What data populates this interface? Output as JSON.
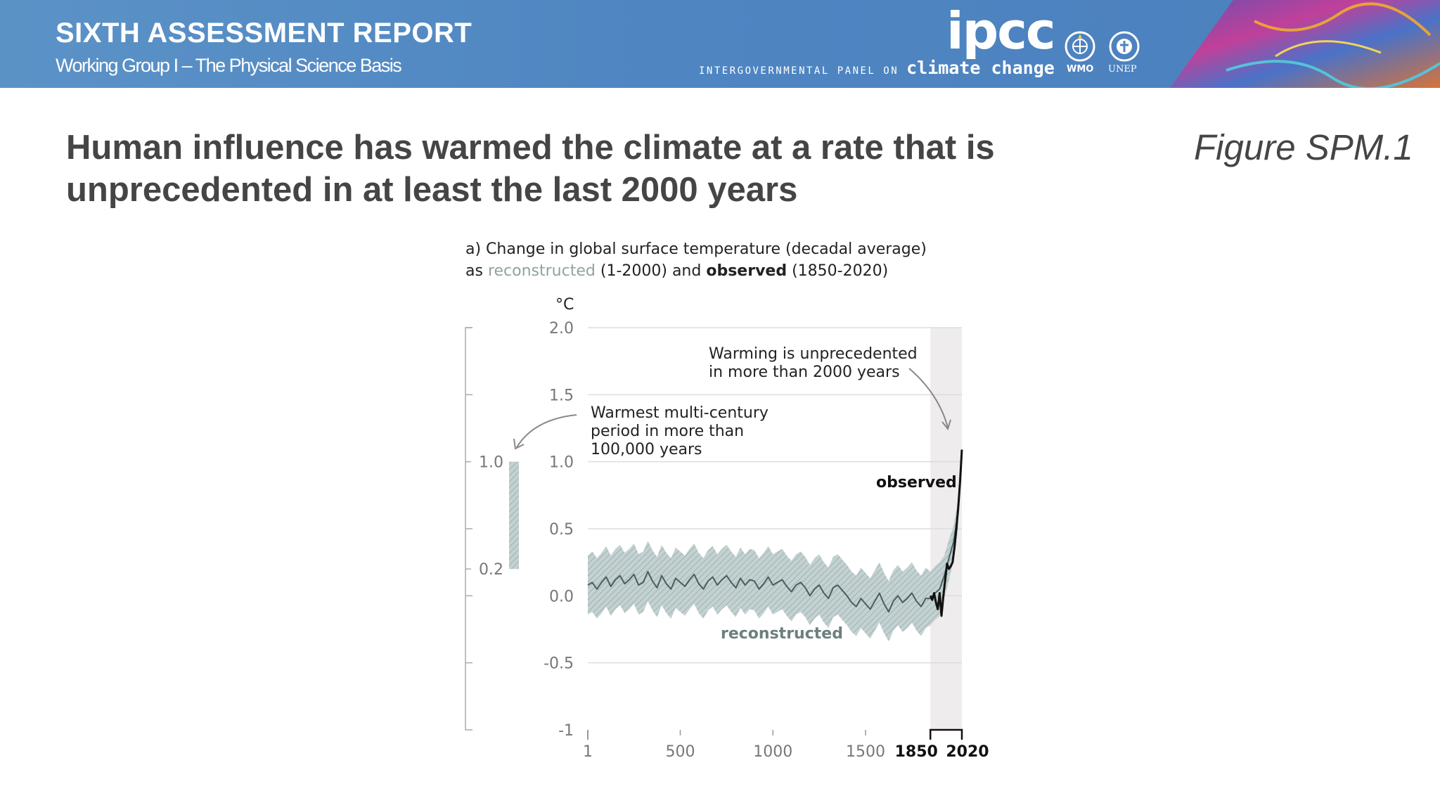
{
  "banner": {
    "title": "SIXTH ASSESSMENT REPORT",
    "subtitle": "Working Group I – The Physical Science Basis",
    "logo_text": "ipcc",
    "logo_line_small": "INTERGOVERNMENTAL PANEL ON",
    "logo_line_big": "climate change",
    "emblems": [
      "WMO",
      "UNEP"
    ],
    "colors": {
      "banner": "#4f86c2",
      "text": "#ffffff"
    }
  },
  "headline": {
    "line1": "Human influence has warmed the climate at a rate that is",
    "line2": "unprecedented in at least the last 2000 years"
  },
  "figure_label": "Figure SPM.1",
  "chart_data": {
    "type": "line",
    "title_prefix": "a) Change in global surface temperature (decadal average)",
    "title_line2_as": "as",
    "title_reconstructed": "reconstructed",
    "title_reconstructed_range": "(1-2000) and",
    "title_observed": "observed",
    "title_observed_range": "(1850-2020)",
    "ylabel": "°C",
    "ylim": [
      -1,
      2
    ],
    "xlim": [
      1,
      2020
    ],
    "y_ticks": [
      "2.0",
      "1.5",
      "1.0",
      "0.5",
      "0.0",
      "-0.5",
      "-1"
    ],
    "y_tick_values": [
      2.0,
      1.5,
      1.0,
      0.5,
      0.0,
      -0.5,
      -1.0
    ],
    "x_ticks": [
      "1",
      "500",
      "1000",
      "1500"
    ],
    "x_tick_values": [
      1,
      500,
      1000,
      1500
    ],
    "x_ticks_bold": [
      "1850",
      "2020"
    ],
    "x_ticks_bold_values": [
      1850,
      2020
    ],
    "shaded_period": [
      1850,
      2020
    ],
    "grid": true,
    "side_bar": {
      "label_top": "1.0",
      "label_bottom": "0.2",
      "range": [
        0.2,
        1.0
      ],
      "caption_lines": [
        "Warmest multi-century",
        "period in more than",
        "100,000 years"
      ]
    },
    "annotation": {
      "lines": [
        "Warming is unprecedented",
        "in more than 2000 years"
      ]
    },
    "series": [
      {
        "name": "reconstructed",
        "color": "#4a5e5e",
        "band_color": "#b6c7c7",
        "x": [
          1,
          25,
          50,
          75,
          100,
          125,
          150,
          175,
          200,
          225,
          250,
          275,
          300,
          325,
          350,
          375,
          400,
          425,
          450,
          475,
          500,
          525,
          550,
          575,
          600,
          625,
          650,
          675,
          700,
          725,
          750,
          775,
          800,
          825,
          850,
          875,
          900,
          925,
          950,
          975,
          1000,
          1025,
          1050,
          1075,
          1100,
          1125,
          1150,
          1175,
          1200,
          1225,
          1250,
          1275,
          1300,
          1325,
          1350,
          1375,
          1400,
          1425,
          1450,
          1475,
          1500,
          1525,
          1550,
          1575,
          1600,
          1625,
          1650,
          1675,
          1700,
          1725,
          1750,
          1775,
          1800,
          1825,
          1850,
          1875,
          1900,
          1925,
          1950,
          1975,
          2000
        ],
        "y": [
          0.08,
          0.1,
          0.05,
          0.1,
          0.14,
          0.07,
          0.12,
          0.15,
          0.09,
          0.12,
          0.16,
          0.08,
          0.1,
          0.18,
          0.11,
          0.06,
          0.15,
          0.09,
          0.05,
          0.13,
          0.1,
          0.07,
          0.12,
          0.16,
          0.09,
          0.05,
          0.11,
          0.14,
          0.08,
          0.12,
          0.15,
          0.1,
          0.06,
          0.13,
          0.08,
          0.12,
          0.11,
          0.05,
          0.09,
          0.14,
          0.08,
          0.1,
          0.12,
          0.07,
          0.03,
          0.08,
          0.1,
          0.06,
          0.0,
          0.05,
          0.08,
          0.02,
          -0.02,
          0.06,
          0.08,
          0.04,
          0.0,
          -0.05,
          -0.08,
          -0.02,
          -0.06,
          -0.1,
          -0.04,
          0.02,
          -0.06,
          -0.12,
          -0.04,
          0.0,
          -0.05,
          -0.02,
          0.02,
          -0.04,
          -0.08,
          -0.02,
          -0.02,
          0.02,
          0.05,
          0.15,
          0.28,
          0.4,
          0.62
        ],
        "upper": [
          0.3,
          0.33,
          0.28,
          0.32,
          0.37,
          0.3,
          0.35,
          0.38,
          0.32,
          0.35,
          0.39,
          0.31,
          0.33,
          0.41,
          0.34,
          0.29,
          0.38,
          0.32,
          0.28,
          0.36,
          0.33,
          0.3,
          0.35,
          0.39,
          0.32,
          0.28,
          0.34,
          0.37,
          0.31,
          0.35,
          0.38,
          0.33,
          0.29,
          0.36,
          0.31,
          0.35,
          0.34,
          0.28,
          0.32,
          0.37,
          0.31,
          0.33,
          0.35,
          0.3,
          0.26,
          0.31,
          0.33,
          0.29,
          0.23,
          0.28,
          0.31,
          0.25,
          0.21,
          0.29,
          0.31,
          0.27,
          0.23,
          0.18,
          0.15,
          0.21,
          0.17,
          0.13,
          0.19,
          0.25,
          0.17,
          0.11,
          0.19,
          0.23,
          0.18,
          0.21,
          0.25,
          0.19,
          0.15,
          0.21,
          0.18,
          0.22,
          0.25,
          0.3,
          0.42,
          0.52,
          0.72
        ],
        "lower": [
          -0.14,
          -0.12,
          -0.17,
          -0.13,
          -0.08,
          -0.15,
          -0.1,
          -0.07,
          -0.13,
          -0.1,
          -0.06,
          -0.14,
          -0.12,
          -0.04,
          -0.11,
          -0.16,
          -0.07,
          -0.13,
          -0.17,
          -0.09,
          -0.12,
          -0.15,
          -0.1,
          -0.06,
          -0.13,
          -0.17,
          -0.11,
          -0.08,
          -0.14,
          -0.1,
          -0.07,
          -0.12,
          -0.16,
          -0.09,
          -0.14,
          -0.1,
          -0.11,
          -0.17,
          -0.13,
          -0.08,
          -0.14,
          -0.12,
          -0.1,
          -0.15,
          -0.19,
          -0.14,
          -0.12,
          -0.16,
          -0.22,
          -0.17,
          -0.14,
          -0.2,
          -0.24,
          -0.16,
          -0.14,
          -0.18,
          -0.22,
          -0.27,
          -0.3,
          -0.24,
          -0.28,
          -0.32,
          -0.26,
          -0.2,
          -0.28,
          -0.34,
          -0.26,
          -0.22,
          -0.27,
          -0.24,
          -0.2,
          -0.26,
          -0.3,
          -0.24,
          -0.22,
          -0.18,
          -0.15,
          -0.02,
          0.12,
          0.26,
          0.5
        ]
      },
      {
        "name": "observed",
        "color": "#111111",
        "x": [
          1850,
          1860,
          1870,
          1880,
          1890,
          1900,
          1910,
          1920,
          1930,
          1940,
          1950,
          1960,
          1970,
          1980,
          1990,
          2000,
          2010,
          2020
        ],
        "y": [
          0.0,
          -0.03,
          0.02,
          -0.05,
          -0.1,
          0.02,
          -0.15,
          0.0,
          0.12,
          0.24,
          0.2,
          0.22,
          0.25,
          0.36,
          0.5,
          0.65,
          0.85,
          1.09
        ]
      }
    ]
  }
}
